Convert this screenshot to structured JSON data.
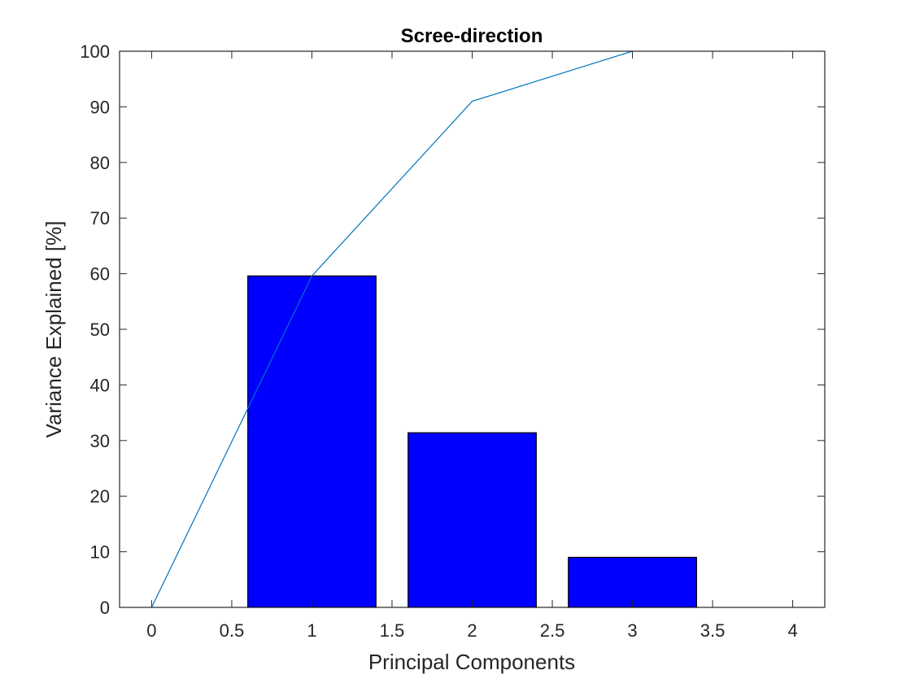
{
  "chart_data": {
    "type": "bar",
    "title": "Scree-direction",
    "xlabel": "Principal Components",
    "ylabel": "Variance Explained [%]",
    "xlim": [
      -0.2,
      4.2
    ],
    "ylim": [
      0,
      100
    ],
    "xticks": [
      0,
      0.5,
      1,
      1.5,
      2,
      2.5,
      3,
      3.5,
      4
    ],
    "xtick_labels": [
      "0",
      "0.5",
      "1",
      "1.5",
      "2",
      "2.5",
      "3",
      "3.5",
      "4"
    ],
    "yticks": [
      0,
      10,
      20,
      30,
      40,
      50,
      60,
      70,
      80,
      90,
      100
    ],
    "ytick_labels": [
      "0",
      "10",
      "20",
      "30",
      "40",
      "50",
      "60",
      "70",
      "80",
      "90",
      "100"
    ],
    "bars": {
      "x": [
        1,
        2,
        3
      ],
      "values": [
        59.6,
        31.4,
        9.0
      ],
      "bar_width": 0.8,
      "color": "#0000ff"
    },
    "line": {
      "x": [
        0,
        1,
        2,
        3
      ],
      "values": [
        0,
        59.6,
        91.0,
        100
      ],
      "color": "#0072bd"
    },
    "grid": false,
    "legend": "none"
  }
}
